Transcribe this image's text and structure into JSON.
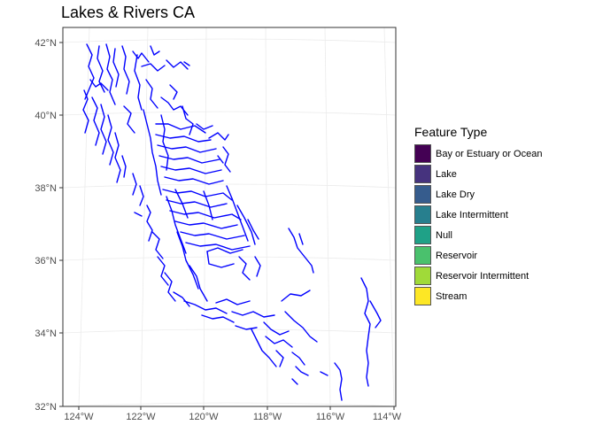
{
  "map": {
    "title": "Lakes & Rivers CA",
    "lat_ticks": [
      "32°N",
      "34°N",
      "36°N",
      "38°N",
      "40°N",
      "42°N"
    ],
    "lon_ticks": [
      "124°W",
      "122°W",
      "120°W",
      "118°W",
      "116°W",
      "114°W"
    ],
    "river_color": "#0000ff",
    "grid_color": "#ebebeb"
  },
  "legend": {
    "title": "Feature Type",
    "items": [
      {
        "label": "Bay or Estuary or Ocean",
        "color": "#440154"
      },
      {
        "label": "Lake",
        "color": "#46337e"
      },
      {
        "label": "Lake Dry",
        "color": "#365c8d"
      },
      {
        "label": "Lake Intermittent",
        "color": "#277f8e"
      },
      {
        "label": "Null",
        "color": "#1fa187"
      },
      {
        "label": "Reservoir",
        "color": "#4ac16d"
      },
      {
        "label": "Reservoir Intermittent",
        "color": "#a0da39"
      },
      {
        "label": "Stream",
        "color": "#fde725"
      }
    ]
  }
}
